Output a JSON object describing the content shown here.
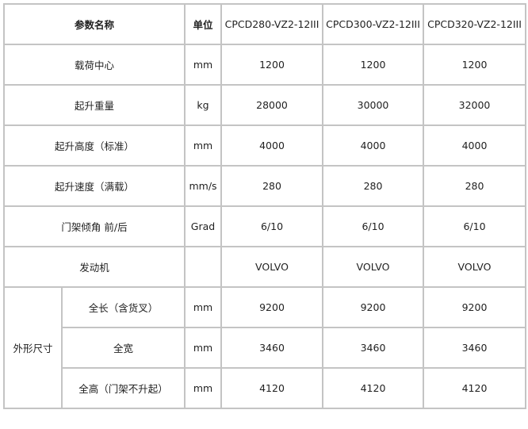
{
  "header": {
    "param": "参数名称",
    "unit": "单位",
    "models": [
      "CPCD280-VZ2-12III",
      "CPCD300-VZ2-12III",
      "CPCD320-VZ2-12III"
    ]
  },
  "rows": [
    {
      "name": "载荷中心",
      "unit": "mm",
      "values": [
        "1200",
        "1200",
        "1200"
      ]
    },
    {
      "name": "起升重量",
      "unit": "kg",
      "values": [
        "28000",
        "30000",
        "32000"
      ]
    },
    {
      "name": "起升高度（标准）",
      "unit": "mm",
      "values": [
        "4000",
        "4000",
        "4000"
      ]
    },
    {
      "name": "起升速度（满载）",
      "unit": "mm/s",
      "values": [
        "280",
        "280",
        "280"
      ]
    },
    {
      "name": "门架倾角 前/后",
      "unit": "Grad",
      "values": [
        "6/10",
        "6/10",
        "6/10"
      ]
    },
    {
      "name": "发动机",
      "unit": "",
      "values": [
        "VOLVO",
        "VOLVO",
        "VOLVO"
      ]
    }
  ],
  "group": {
    "label": "外形尺寸",
    "rows": [
      {
        "name": "全长（含货叉）",
        "unit": "mm",
        "values": [
          "9200",
          "9200",
          "9200"
        ]
      },
      {
        "name": "全宽",
        "unit": "mm",
        "values": [
          "3460",
          "3460",
          "3460"
        ]
      },
      {
        "name": "全高（门架不升起）",
        "unit": "mm",
        "values": [
          "4120",
          "4120",
          "4120"
        ]
      }
    ]
  }
}
